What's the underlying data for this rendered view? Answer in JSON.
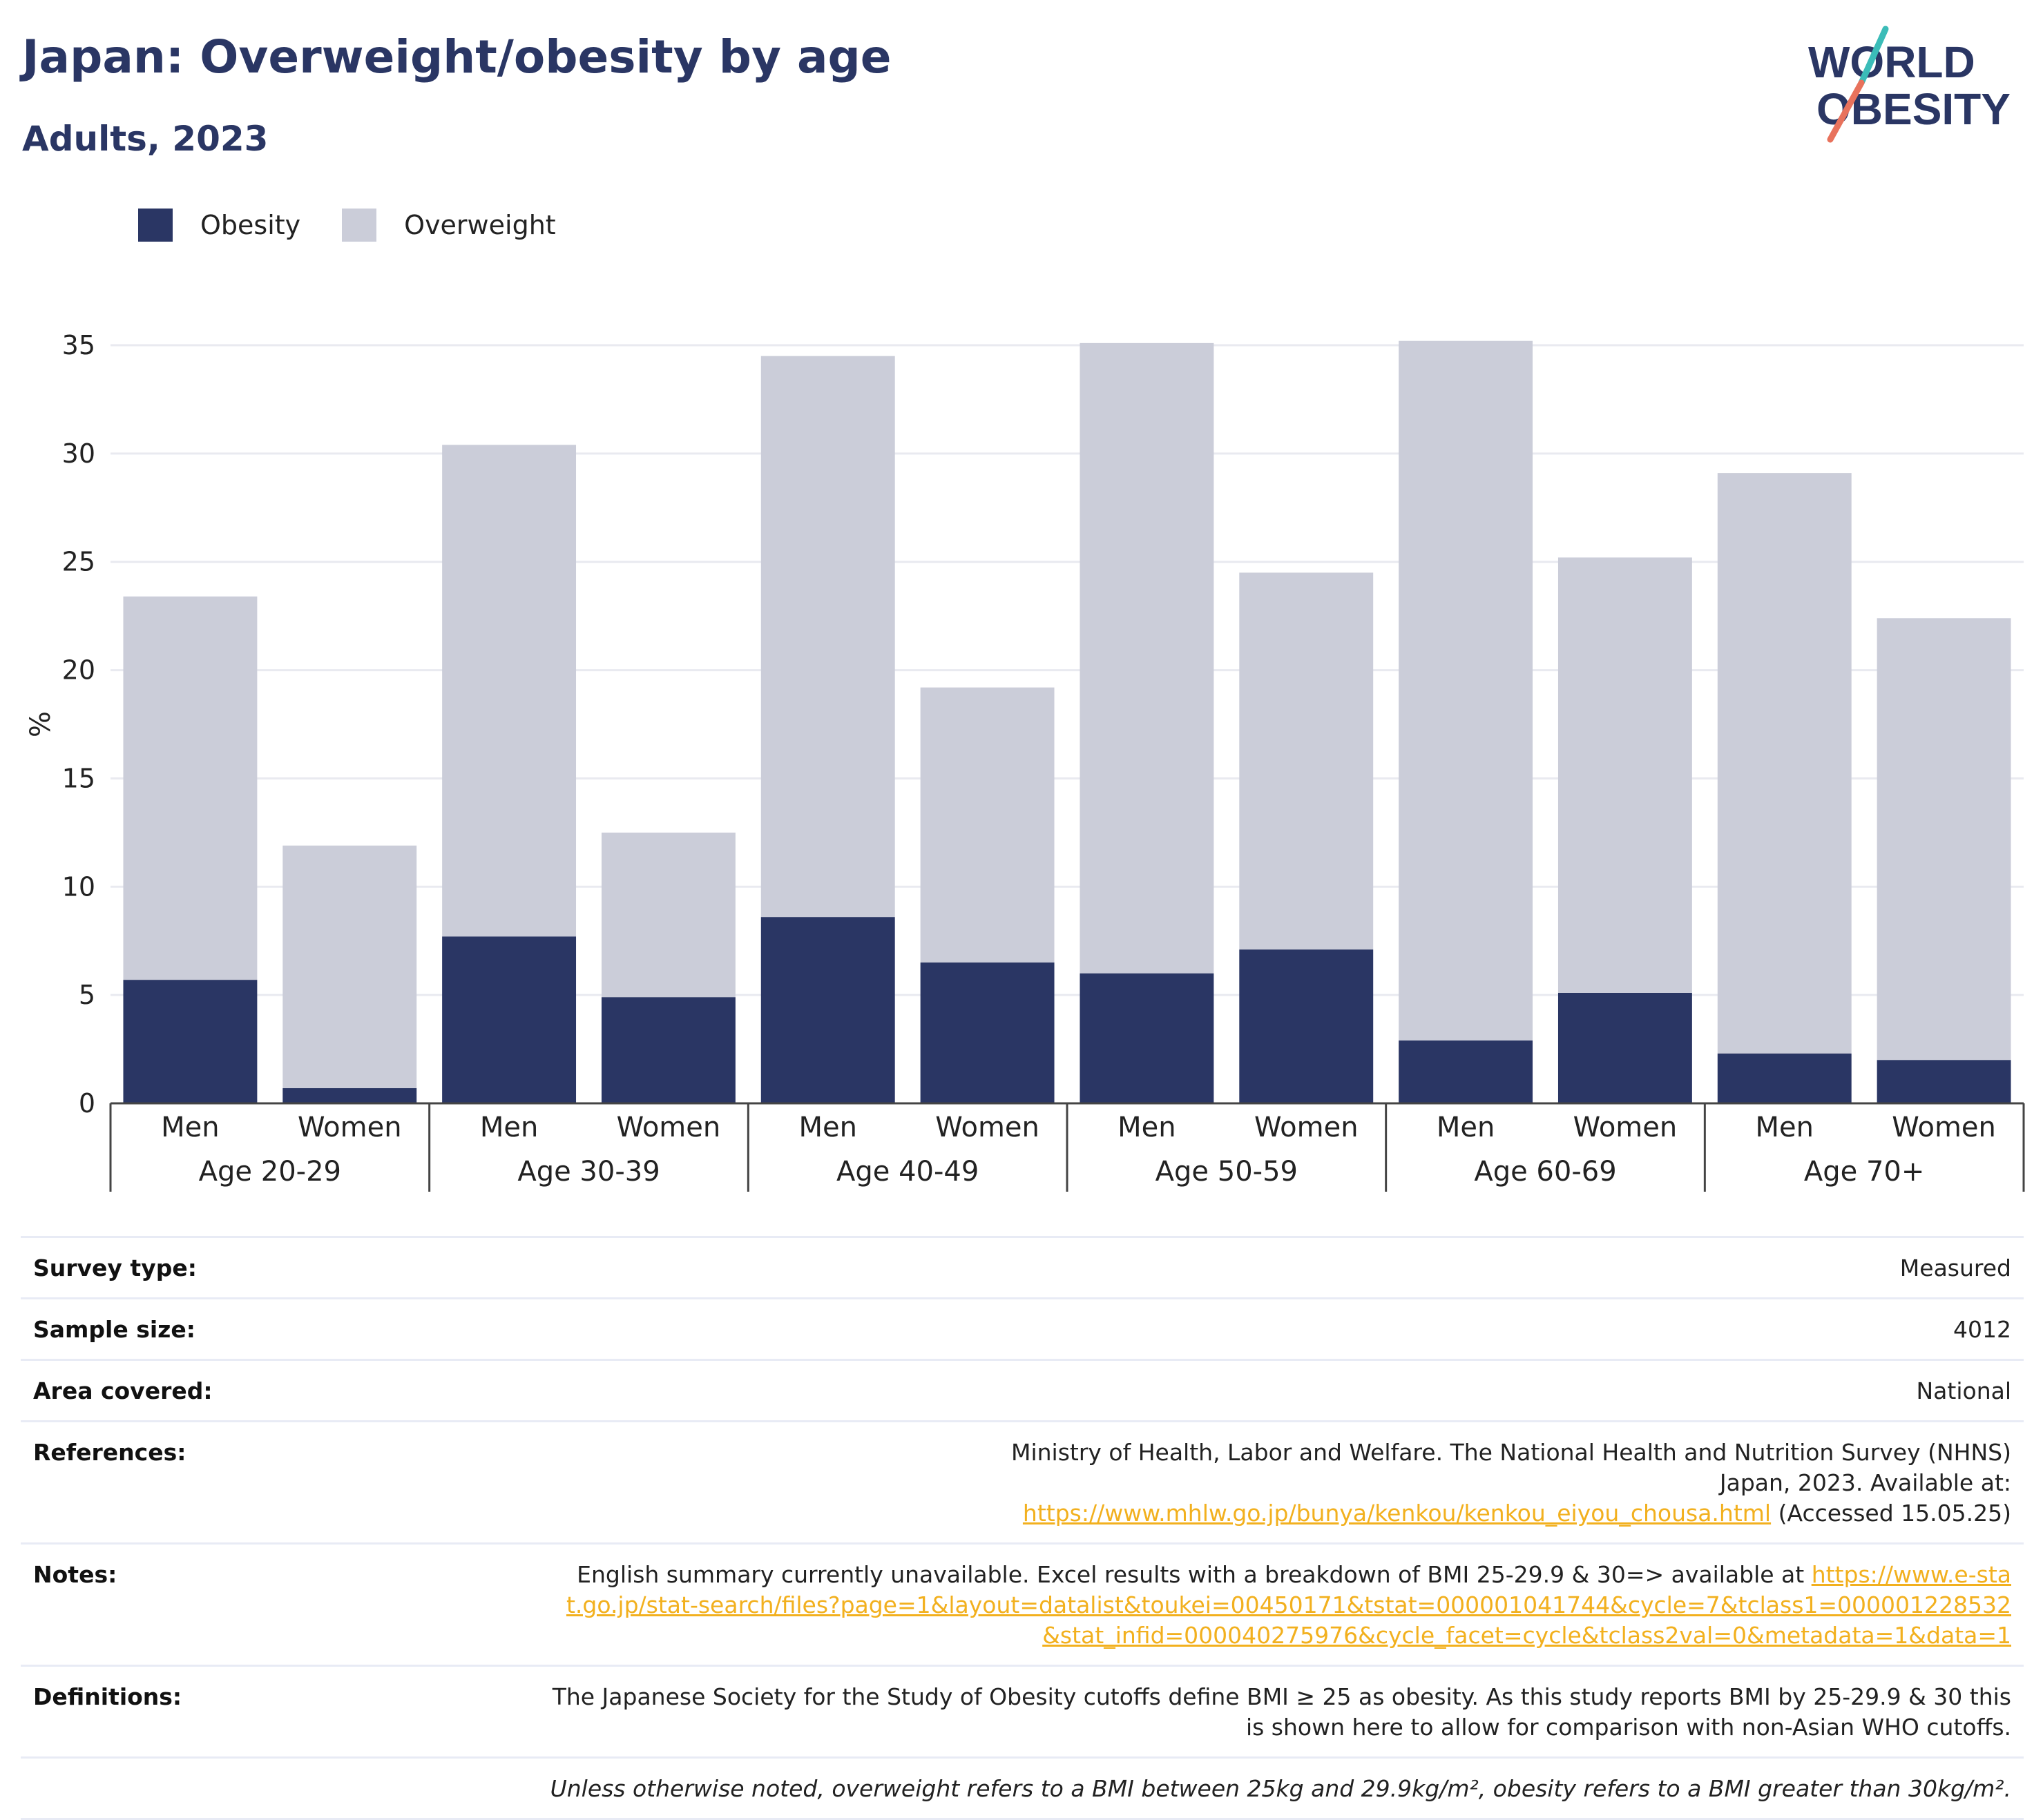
{
  "header": {
    "title": "Japan: Overweight/obesity by age",
    "subtitle": "Adults, 2023",
    "logo_text_line1": "WORLD",
    "logo_text_line2": "OBESITY"
  },
  "colors": {
    "obesity": "#2a3664",
    "overweight": "#cbcdd9",
    "title": "#2a3664",
    "link": "#f2b01e",
    "logo_teal": "#3bbcb8",
    "logo_coral": "#e8725c"
  },
  "legend": {
    "items": [
      {
        "label": "Obesity",
        "color": "#2a3664"
      },
      {
        "label": "Overweight",
        "color": "#cbcdd9"
      }
    ]
  },
  "chart_data": {
    "type": "bar",
    "stacked": true,
    "ylabel": "%",
    "ylim": [
      0,
      35
    ],
    "yticks": [
      0,
      5,
      10,
      15,
      20,
      25,
      30,
      35
    ],
    "grid": true,
    "legend_position": "top-left",
    "groups": [
      "Age 20-29",
      "Age 30-39",
      "Age 40-49",
      "Age 50-59",
      "Age 60-69",
      "Age 70+"
    ],
    "categories": [
      "Men",
      "Women",
      "Men",
      "Women",
      "Men",
      "Women",
      "Men",
      "Women",
      "Men",
      "Women",
      "Men",
      "Women"
    ],
    "series": [
      {
        "name": "Obesity",
        "values": [
          5.7,
          0.7,
          7.7,
          4.9,
          8.6,
          6.5,
          6.0,
          7.1,
          2.9,
          5.1,
          2.3,
          2.0
        ]
      },
      {
        "name": "Overweight",
        "values": [
          17.7,
          11.2,
          22.7,
          7.6,
          25.9,
          12.7,
          29.1,
          17.4,
          32.3,
          20.1,
          26.8,
          20.4
        ]
      }
    ]
  },
  "info": {
    "survey_type_label": "Survey type:",
    "survey_type_value": "Measured",
    "sample_size_label": "Sample size:",
    "sample_size_value": "4012",
    "area_label": "Area covered:",
    "area_value": "National",
    "references_label": "References:",
    "references_text": "Ministry of Health, Labor and Welfare. The National Health and Nutrition Survey (NHNS) Japan, 2023. Available at:",
    "references_link": "https://www.mhlw.go.jp/bunya/kenkou/kenkou_eiyou_chousa.html",
    "references_accessed": " (Accessed 15.05.25)",
    "notes_label": "Notes:",
    "notes_text": "English summary currently unavailable. Excel results with a breakdown of BMI 25-29.9 & 30=> available at ",
    "notes_link": "https://www.e-stat.go.jp/stat-search/files?page=1&layout=datalist&toukei=00450171&tstat=000001041744&cycle=7&tclass1=000001228532&stat_infid=000040275976&cycle_facet=cycle&tclass2val=0&metadata=1&data=1",
    "definitions_label": "Definitions:",
    "definitions_text": "The Japanese Society for the Study of Obesity cutoffs define BMI ≥ 25 as obesity. As this study reports BMI by 25-29.9 & 30 this is shown here to allow for comparison with non-Asian WHO cutoffs.",
    "footnote": "Unless otherwise noted, overweight refers to a BMI between 25kg and 29.9kg/m², obesity refers to a BMI greater than 30kg/m²."
  }
}
